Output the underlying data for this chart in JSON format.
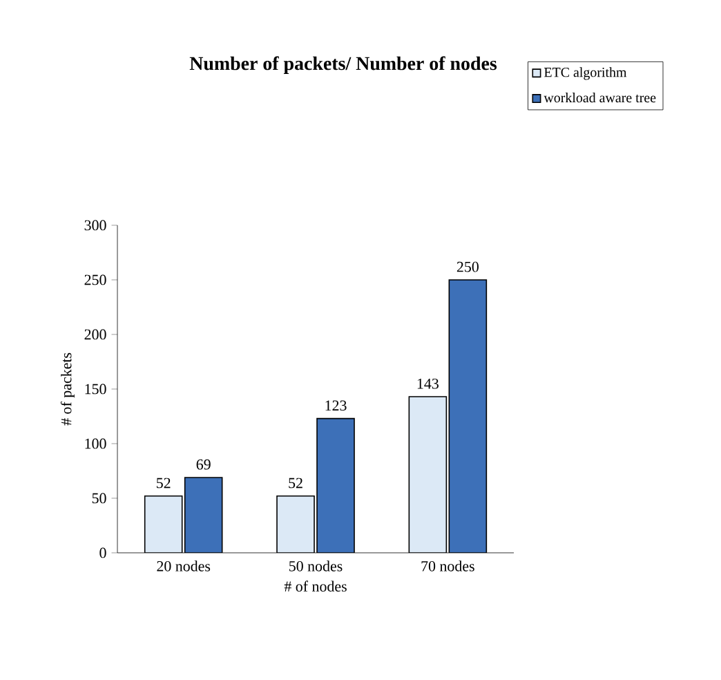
{
  "chart_data": {
    "type": "bar",
    "title": "Number of packets/ Number of nodes",
    "xlabel": "# of nodes",
    "ylabel": "# of packets",
    "categories": [
      "20 nodes",
      "50 nodes",
      "70 nodes"
    ],
    "series": [
      {
        "name": "ETC algorithm",
        "color": "#dce9f6",
        "values": [
          52,
          52,
          143
        ]
      },
      {
        "name": "workload aware tree",
        "color": "#3d70b8",
        "values": [
          69,
          123,
          250
        ]
      }
    ],
    "ylim": [
      0,
      300
    ],
    "yticks": [
      0,
      50,
      100,
      150,
      200,
      250,
      300
    ],
    "data_labels": true,
    "legend": "top right",
    "grid": false
  }
}
